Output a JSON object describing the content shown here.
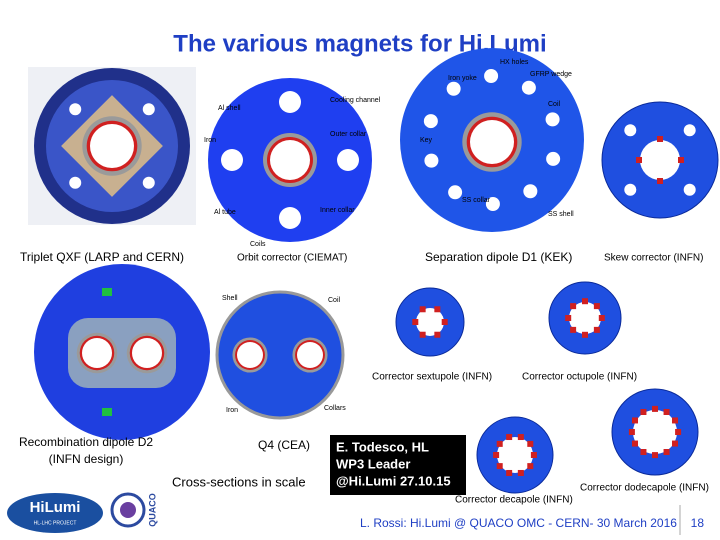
{
  "title": "The various magnets for Hi.Lumi",
  "panels": [
    {
      "caption": "Triplet QXF (LARP and CERN)"
    },
    {
      "caption": "Orbit corrector (CIEMAT)",
      "labels": [
        "Al shell",
        "Cooling channel",
        "Iron",
        "Outer collar",
        "Inner collar",
        "Al tube",
        "Coils"
      ]
    },
    {
      "caption": "Separation dipole D1 (KEK)",
      "labels": [
        "Iron yoke",
        "HX holes",
        "GFRP wedge",
        "Coil",
        "Key",
        "SS collar",
        "SS shell"
      ]
    },
    {
      "caption": "Skew corrector (INFN)"
    },
    {
      "caption_lines": [
        "Recombination dipole D2",
        "(INFN design)"
      ]
    },
    {
      "caption": "Q4 (CEA)",
      "labels": [
        "Shell",
        "Coil",
        "Iron",
        "Collars"
      ]
    },
    {
      "caption": "Corrector sextupole (INFN)"
    },
    {
      "caption": "Corrector octupole (INFN)"
    },
    {
      "caption": "Corrector decapole (INFN)"
    },
    {
      "caption": "Corrector dodecapole (INFN)"
    }
  ],
  "note": "Cross-sections in scale",
  "box": {
    "lines": [
      "E. Todesco, HL",
      "WP3 Leader",
      "@Hi.Lumi 27.10.15"
    ]
  },
  "logos": {
    "hilumi": "HiLumi",
    "project": "HL-LHC PROJECT",
    "quaco": "QUACO"
  },
  "footer": {
    "text": "L. Rossi: Hi.Lumi @ QUACO OMC - CERN- 30 March 2016",
    "page": "18"
  }
}
